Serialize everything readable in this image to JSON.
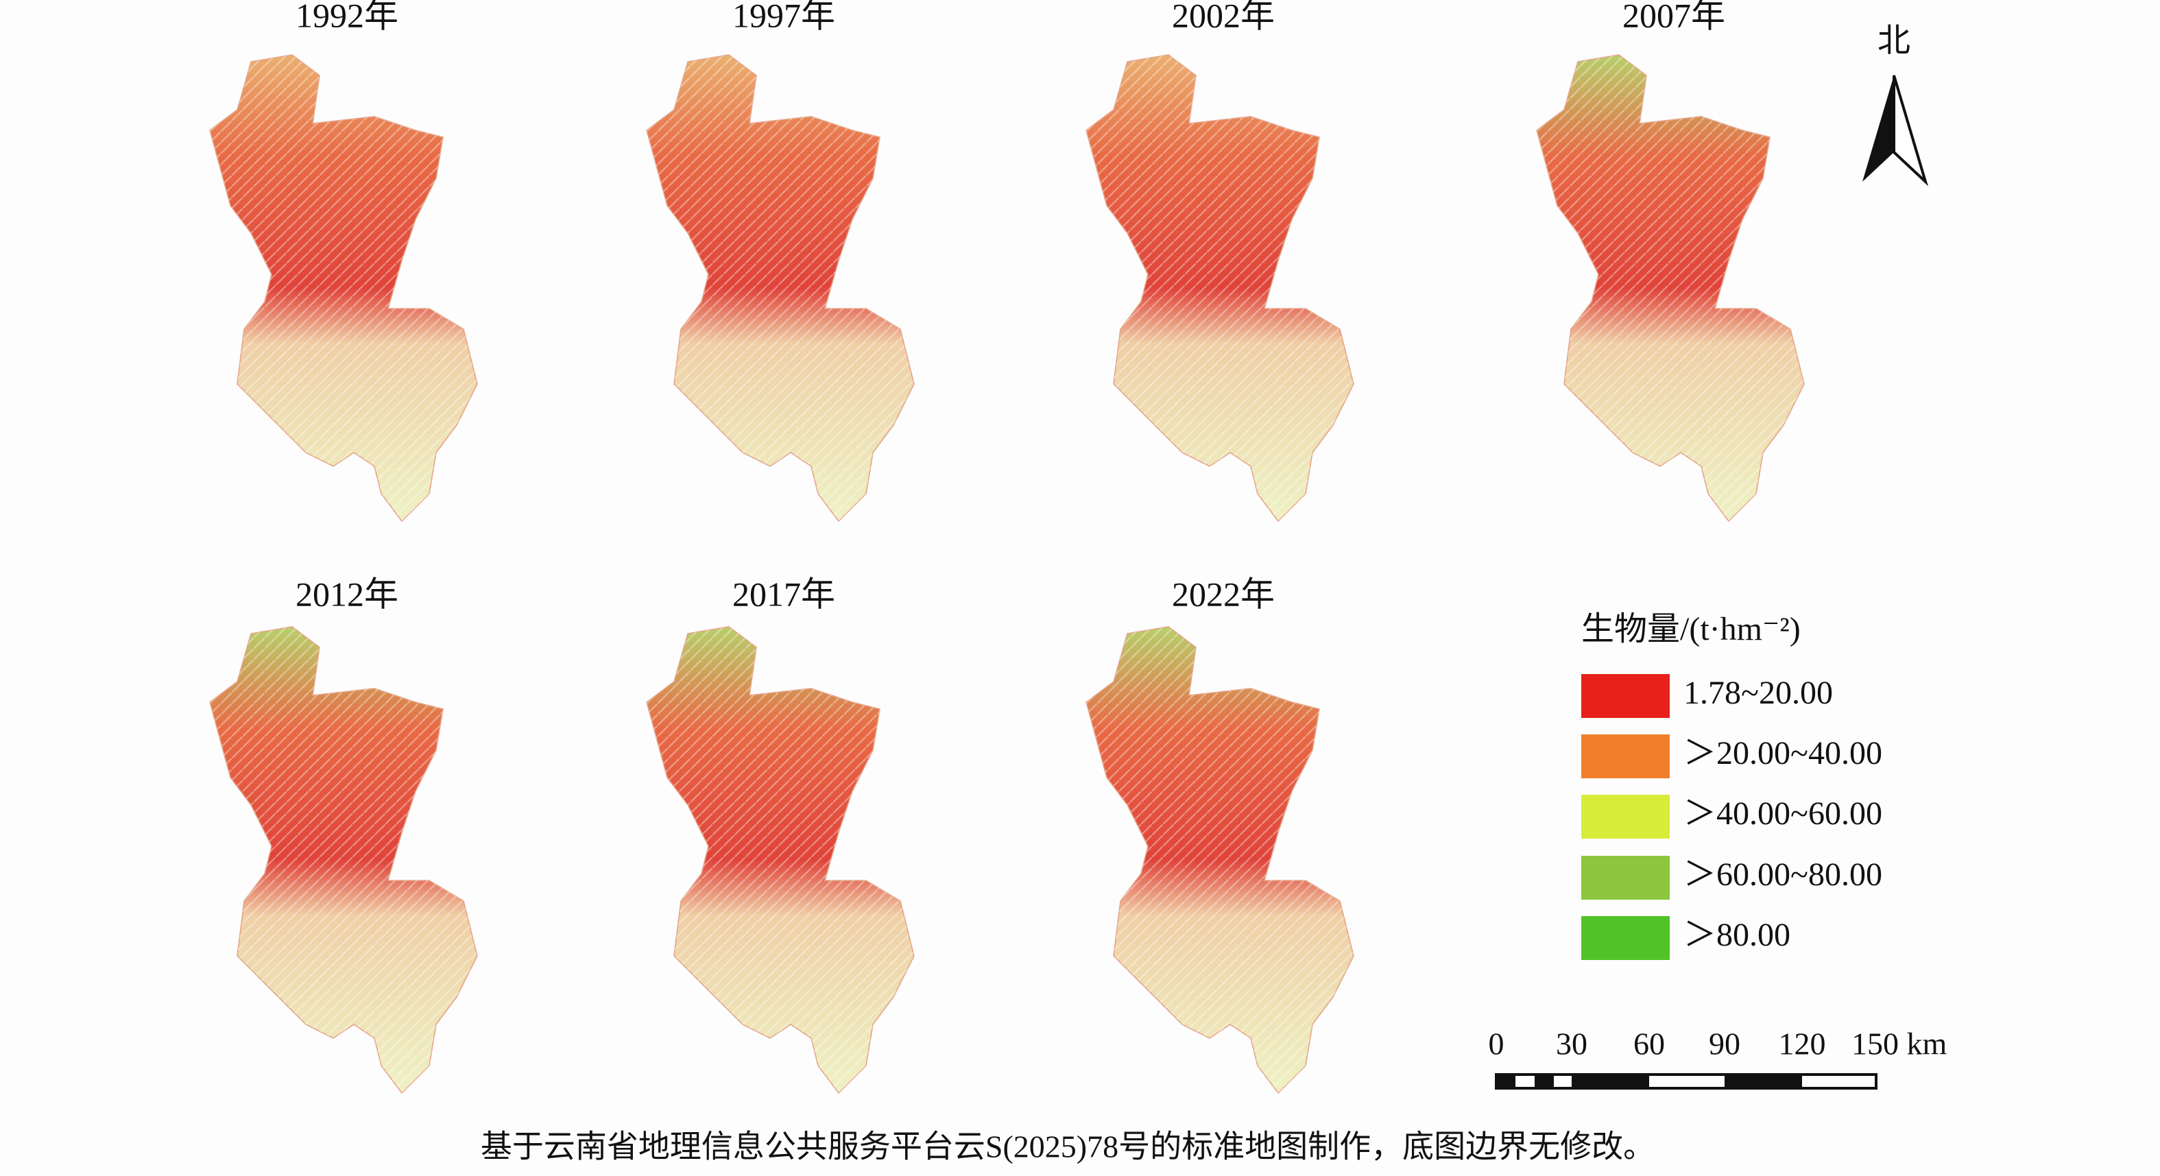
{
  "panels": [
    {
      "title": "1992年"
    },
    {
      "title": "1997年"
    },
    {
      "title": "2002年"
    },
    {
      "title": "2007年"
    },
    {
      "title": "2012年"
    },
    {
      "title": "2017年"
    },
    {
      "title": "2022年"
    }
  ],
  "north": "北",
  "legend": {
    "title": "生物量/(t·hm⁻²)",
    "items": [
      {
        "label": "1.78~20.00",
        "color": "#e8221a"
      },
      {
        "label": "＞20.00~40.00",
        "color": "#f07e2a"
      },
      {
        "label": "＞40.00~60.00",
        "color": "#d8ec3a"
      },
      {
        "label": "＞60.00~80.00",
        "color": "#8dc63f"
      },
      {
        "label": "＞80.00",
        "color": "#52c229"
      }
    ]
  },
  "scale_bar": {
    "labels": [
      "0",
      "30",
      "60",
      "90",
      "120",
      "150 km"
    ]
  },
  "caption": "基于云南省地理信息公共服务平台云S(2025)78号的标准地图制作，底图边界无修改。"
}
